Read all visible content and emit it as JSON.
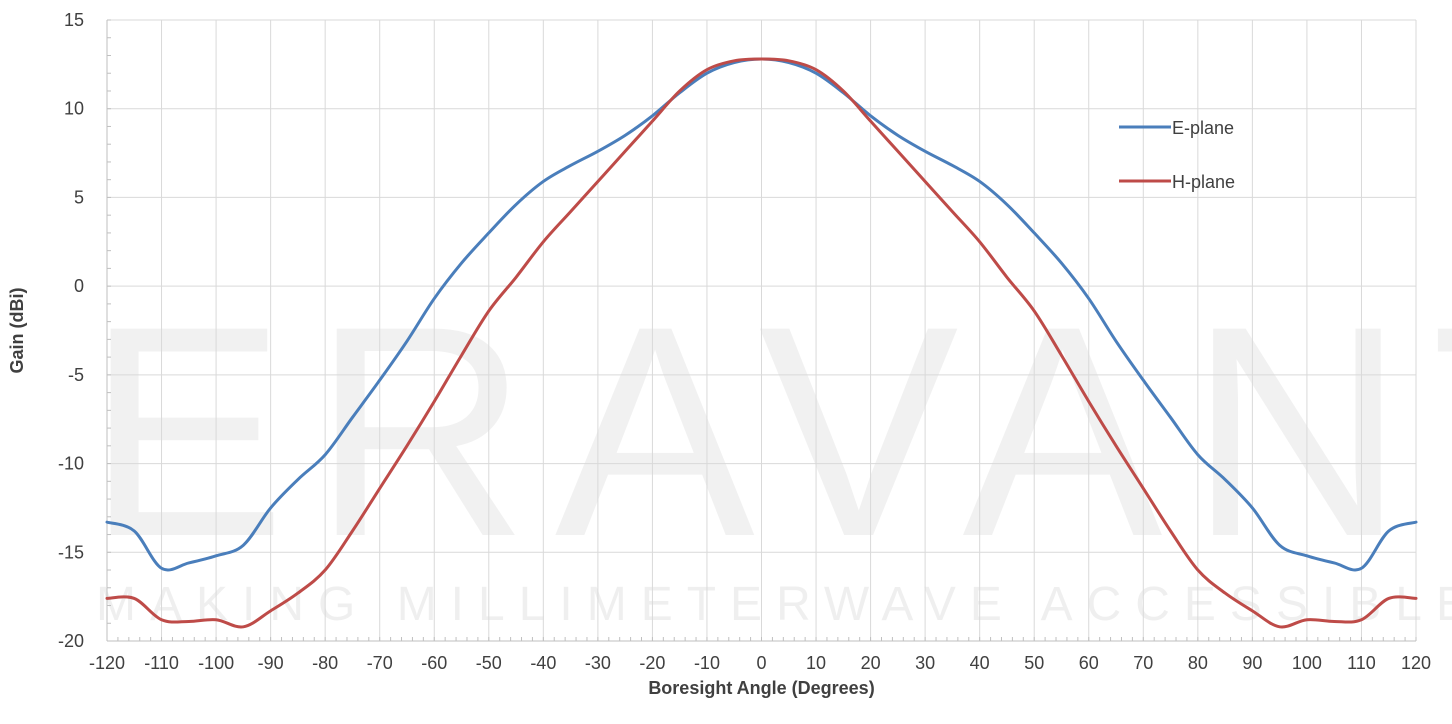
{
  "watermark": {
    "brand": "ERAVANT",
    "tagline": "MAKING MILLIMETERWAVE ACCESSIBLE"
  },
  "colors": {
    "e_plane": "#4a7ebb",
    "h_plane": "#be4b48",
    "grid": "#d9d9d9",
    "axis": "#bfbfbf"
  },
  "chart_data": {
    "type": "line",
    "title": "",
    "xlabel": "Boresight Angle (Degrees)",
    "ylabel": "Gain (dBi)",
    "xlim": [
      -120,
      120
    ],
    "ylim": [
      -20,
      15
    ],
    "xticks": [
      -120,
      -110,
      -100,
      -90,
      -80,
      -70,
      -60,
      -50,
      -40,
      -30,
      -20,
      -10,
      0,
      10,
      20,
      30,
      40,
      50,
      60,
      70,
      80,
      90,
      100,
      110,
      120
    ],
    "yticks": [
      15,
      10,
      5,
      0,
      -5,
      -10,
      -15,
      -20
    ],
    "grid": "vertical and horizontal major gridlines",
    "legend_position": "right, upper",
    "x": [
      -120,
      -115,
      -110,
      -105,
      -100,
      -95,
      -90,
      -85,
      -80,
      -75,
      -70,
      -65,
      -60,
      -55,
      -50,
      -45,
      -40,
      -35,
      -30,
      -25,
      -20,
      -15,
      -10,
      -5,
      0,
      5,
      10,
      15,
      20,
      25,
      30,
      35,
      40,
      45,
      50,
      55,
      60,
      65,
      70,
      75,
      80,
      85,
      90,
      95,
      100,
      105,
      110,
      115,
      120
    ],
    "series": [
      {
        "name": "E-plane",
        "values": [
          -13.3,
          -13.8,
          -15.9,
          -15.6,
          -15.2,
          -14.6,
          -12.5,
          -10.9,
          -9.5,
          -7.4,
          -5.3,
          -3.1,
          -0.7,
          1.3,
          3.0,
          4.6,
          5.9,
          6.8,
          7.6,
          8.5,
          9.6,
          10.9,
          12.0,
          12.6,
          12.8,
          12.6,
          12.0,
          10.9,
          9.6,
          8.5,
          7.6,
          6.8,
          5.9,
          4.6,
          3.0,
          1.3,
          -0.7,
          -3.1,
          -5.3,
          -7.4,
          -9.5,
          -10.9,
          -12.5,
          -14.6,
          -15.2,
          -15.6,
          -15.9,
          -13.8,
          -13.3
        ]
      },
      {
        "name": "H-plane",
        "values": [
          -17.6,
          -17.6,
          -18.8,
          -18.9,
          -18.8,
          -19.2,
          -18.3,
          -17.3,
          -16.0,
          -13.8,
          -11.4,
          -9.0,
          -6.5,
          -3.9,
          -1.4,
          0.5,
          2.5,
          4.2,
          5.9,
          7.6,
          9.3,
          11.0,
          12.2,
          12.7,
          12.8,
          12.7,
          12.2,
          11.0,
          9.3,
          7.6,
          5.9,
          4.2,
          2.5,
          0.5,
          -1.4,
          -3.9,
          -6.5,
          -9.0,
          -11.4,
          -13.8,
          -16.0,
          -17.3,
          -18.3,
          -19.2,
          -18.8,
          -18.9,
          -18.8,
          -17.6,
          -17.6
        ]
      }
    ]
  }
}
